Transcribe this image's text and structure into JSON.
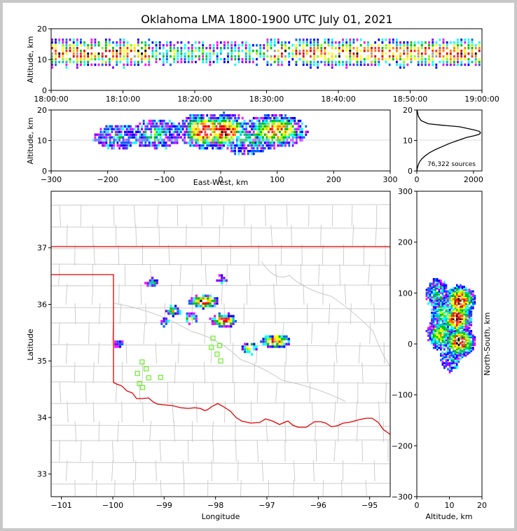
{
  "chart_data": [
    {
      "type": "heatmap",
      "panel": "altitude-time",
      "title": "Oklahoma LMA 1800-1900 UTC July 01, 2021",
      "ylabel": "Altitude, km",
      "ylim": [
        0,
        20
      ],
      "yticks": [
        "0",
        "10",
        "20"
      ],
      "xticks": [
        "18:00:00",
        "18:10:00",
        "18:20:00",
        "18:30:00",
        "18:40:00",
        "18:50:00",
        "19:00:00"
      ],
      "dense_segments_min": [
        [
          0,
          14
        ],
        [
          30,
          33
        ],
        [
          34,
          60
        ]
      ],
      "core_altitude_km": [
        9,
        15
      ]
    },
    {
      "type": "heatmap",
      "panel": "altitude-eastwest",
      "xlabel": "East-West, km",
      "ylabel": "Altitude, km",
      "xlim": [
        -300,
        300
      ],
      "ylim": [
        0,
        20
      ],
      "xticks": [
        "−300",
        "−200",
        "−100",
        "0",
        "100",
        "200",
        "300"
      ],
      "yticks": [
        "0",
        "10",
        "20"
      ],
      "cells": [
        {
          "x": -30,
          "alt": 13,
          "amp": 1.0
        },
        {
          "x": 5,
          "alt": 13,
          "amp": 1.0
        },
        {
          "x": 95,
          "alt": 13,
          "amp": 0.85
        },
        {
          "x": 45,
          "alt": 10,
          "amp": 0.45
        },
        {
          "x": -115,
          "alt": 12,
          "amp": 0.45
        },
        {
          "x": -185,
          "alt": 11,
          "amp": 0.3
        }
      ]
    },
    {
      "type": "line",
      "panel": "altitude-histogram",
      "annotation": "76,322 sources",
      "xlim": [
        0,
        2300
      ],
      "ylim": [
        0,
        20
      ],
      "xticks": [
        "0",
        "2000"
      ],
      "yticks": [
        "0",
        "10",
        "20"
      ],
      "x": [
        0,
        20,
        50,
        100,
        180,
        300,
        450,
        650,
        900,
        1150,
        1450,
        1750,
        2000,
        2200,
        2250,
        2200,
        2000,
        1500,
        900,
        400,
        150,
        50,
        10
      ],
      "y": [
        0,
        1,
        2,
        3,
        4,
        5,
        6,
        7,
        8,
        9,
        10,
        11,
        11.5,
        12,
        12.5,
        13,
        13.5,
        14.5,
        15,
        15.5,
        16.5,
        18,
        20
      ]
    },
    {
      "type": "heatmap",
      "panel": "plan-view",
      "xlabel": "Longitude",
      "ylabel": "Latitude",
      "xlim": [
        -101.2,
        -94.6
      ],
      "ylim": [
        32.6,
        38.0
      ],
      "xticks": [
        "−101",
        "−100",
        "−99",
        "−98",
        "−97",
        "−96",
        "−95"
      ],
      "yticks": [
        "33",
        "34",
        "35",
        "36",
        "37"
      ],
      "cells": [
        {
          "lon": -98.25,
          "lat": 36.05,
          "amp": 1.0
        },
        {
          "lon": -97.85,
          "lat": 35.72,
          "amp": 0.9
        },
        {
          "lon": -96.85,
          "lat": 35.35,
          "amp": 0.95
        },
        {
          "lon": -97.35,
          "lat": 35.22,
          "amp": 0.6
        },
        {
          "lon": -98.85,
          "lat": 35.88,
          "amp": 0.55
        },
        {
          "lon": -98.5,
          "lat": 35.75,
          "amp": 0.5
        },
        {
          "lon": -99.25,
          "lat": 36.38,
          "amp": 0.4
        },
        {
          "lon": -97.9,
          "lat": 36.45,
          "amp": 0.3
        },
        {
          "lon": -99.0,
          "lat": 35.68,
          "amp": 0.3
        },
        {
          "lon": -99.9,
          "lat": 35.3,
          "amp": 0.25
        }
      ],
      "stations": [
        {
          "lon": -99.43,
          "lat": 34.98
        },
        {
          "lon": -99.35,
          "lat": 34.86
        },
        {
          "lon": -99.52,
          "lat": 34.78
        },
        {
          "lon": -99.3,
          "lat": 34.7
        },
        {
          "lon": -99.48,
          "lat": 34.6
        },
        {
          "lon": -99.42,
          "lat": 34.53
        },
        {
          "lon": -99.07,
          "lat": 34.71
        },
        {
          "lon": -98.05,
          "lat": 35.4
        },
        {
          "lon": -98.08,
          "lat": 35.24
        },
        {
          "lon": -97.92,
          "lat": 35.27
        },
        {
          "lon": -97.97,
          "lat": 35.12
        },
        {
          "lon": -97.9,
          "lat": 35.0
        }
      ]
    },
    {
      "type": "heatmap",
      "panel": "northsouth-altitude",
      "xlabel": "Altitude, km",
      "ylabel": "North-South, km",
      "xlim": [
        0,
        20
      ],
      "ylim": [
        -300,
        300
      ],
      "xticks": [
        "0",
        "10",
        "20"
      ],
      "yticks": [
        "−300",
        "−200",
        "−100",
        "0",
        "100",
        "200",
        "300"
      ],
      "cells": [
        {
          "alt": 13,
          "ns": 85,
          "amp": 1.0
        },
        {
          "alt": 12,
          "ns": 50,
          "amp": 1.0
        },
        {
          "alt": 13,
          "ns": 5,
          "amp": 1.0
        },
        {
          "alt": 7,
          "ns": 20,
          "amp": 0.6
        },
        {
          "alt": 8,
          "ns": 60,
          "amp": 0.5
        },
        {
          "alt": 6,
          "ns": 100,
          "amp": 0.4
        },
        {
          "alt": 10,
          "ns": -30,
          "amp": 0.3
        }
      ]
    }
  ]
}
